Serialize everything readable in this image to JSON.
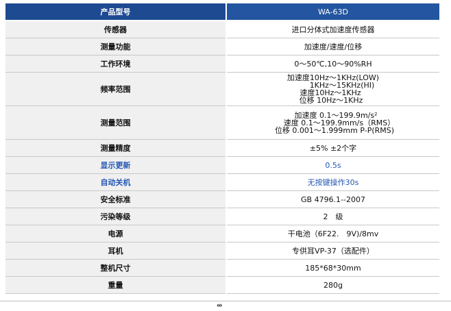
{
  "header": {
    "label": "产品型号",
    "value": "WA-63D"
  },
  "rows": [
    {
      "label": "传感器",
      "value": "进口分体式加速度传感器"
    },
    {
      "label": "测量功能",
      "value": "加速度/速度/位移"
    },
    {
      "label": "工作环境",
      "value": "0～50℃,10～90%RH"
    },
    {
      "label": "频率范围",
      "lines": [
        "加速度10Hz～1KHz(LOW)",
        "1KHz～15KHz(HI)",
        "速度10Hz～1KHz",
        "位移 10Hz～1KHz"
      ]
    },
    {
      "label": "测量范围",
      "lines": [
        "加速度 0.1～199.9m/s²",
        "速度 0.1～199.9mm/s（RMS）",
        "位移 0.001～1.999mm P-P(RMS)"
      ]
    },
    {
      "label": "测量精度",
      "value": "±5% ±2个字"
    },
    {
      "label": "显示更新",
      "value": "0.5s"
    },
    {
      "label": "自动关机",
      "value": "无按键操作30s"
    },
    {
      "label": "安全标准",
      "value": "GB 4796.1--2007"
    },
    {
      "label": "污染等级",
      "value": "2　级"
    },
    {
      "label": "电源",
      "value": "干电池（6F22.　9V)/8mv"
    },
    {
      "label": "耳机",
      "value": "专供耳VP-37（选配件）"
    },
    {
      "label": "整机尺寸",
      "value": "185*68*30mm"
    },
    {
      "label": "重量",
      "value": "280g"
    }
  ],
  "footer": {
    "resize_glyph": "⇹"
  },
  "colors": {
    "header_bg": "#1e4a92",
    "accent_text": "#2456b4",
    "label_bg": "#f0f0f0"
  }
}
